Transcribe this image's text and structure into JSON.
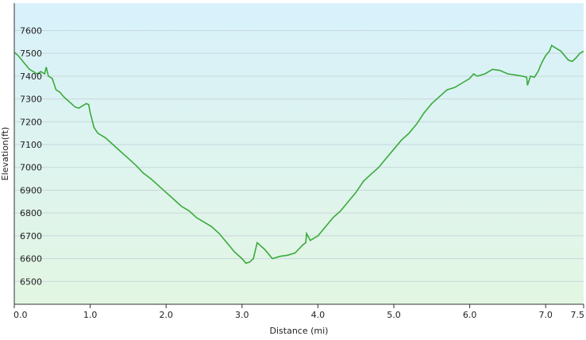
{
  "chart_data": {
    "type": "area",
    "xlabel": "Distance  (mi)",
    "ylabel": "Elevation(ft)",
    "xlim": [
      0,
      7.5
    ],
    "ylim": [
      6400,
      7720
    ],
    "x_ticks": [
      0,
      1,
      2,
      3,
      4,
      5,
      6,
      7,
      7.5
    ],
    "x_tick_labels": [
      "0.0",
      "1.0",
      "2.0",
      "3.0",
      "4.0",
      "5.0",
      "6.0",
      "7.0",
      "7.5"
    ],
    "y_ticks": [
      6500,
      6600,
      6700,
      6800,
      6900,
      7000,
      7100,
      7200,
      7300,
      7400,
      7500,
      7600
    ],
    "y_tick_labels": [
      "6500",
      "6600",
      "6700",
      "6800",
      "6900",
      "7000",
      "7100",
      "7200",
      "7300",
      "7400",
      "7500",
      "7600"
    ],
    "grid": true,
    "line_color": "#3aaa3a",
    "fill_top_color": "#d8f1fb",
    "fill_bottom_color": "#e3f6e3",
    "series": [
      {
        "x": [
          0.0,
          0.05,
          0.1,
          0.15,
          0.2,
          0.25,
          0.3,
          0.35,
          0.4,
          0.42,
          0.45,
          0.5,
          0.55,
          0.6,
          0.65,
          0.7,
          0.75,
          0.8,
          0.85,
          0.9,
          0.95,
          0.98,
          1.0,
          1.05,
          1.1,
          1.2,
          1.3,
          1.4,
          1.5,
          1.6,
          1.7,
          1.8,
          1.9,
          2.0,
          2.1,
          2.2,
          2.3,
          2.4,
          2.5,
          2.6,
          2.7,
          2.8,
          2.9,
          3.0,
          3.05,
          3.1,
          3.15,
          3.2,
          3.25,
          3.3,
          3.35,
          3.4,
          3.45,
          3.5,
          3.6,
          3.7,
          3.8,
          3.84,
          3.85,
          3.9,
          4.0,
          4.1,
          4.2,
          4.3,
          4.4,
          4.5,
          4.6,
          4.7,
          4.8,
          4.9,
          5.0,
          5.1,
          5.2,
          5.3,
          5.4,
          5.5,
          5.6,
          5.7,
          5.8,
          5.9,
          6.0,
          6.05,
          6.1,
          6.2,
          6.3,
          6.4,
          6.5,
          6.6,
          6.7,
          6.75,
          6.76,
          6.8,
          6.85,
          6.9,
          6.95,
          7.0,
          7.05,
          7.08,
          7.1,
          7.15,
          7.2,
          7.3,
          7.35,
          7.4,
          7.45,
          7.5
        ],
        "values": [
          7505,
          7490,
          7470,
          7450,
          7430,
          7420,
          7410,
          7420,
          7410,
          7440,
          7400,
          7390,
          7340,
          7330,
          7310,
          7295,
          7280,
          7265,
          7260,
          7270,
          7280,
          7275,
          7240,
          7175,
          7150,
          7130,
          7100,
          7070,
          7040,
          7010,
          6975,
          6950,
          6920,
          6890,
          6860,
          6830,
          6810,
          6780,
          6760,
          6740,
          6710,
          6670,
          6630,
          6600,
          6580,
          6585,
          6600,
          6670,
          6655,
          6640,
          6620,
          6600,
          6605,
          6610,
          6615,
          6625,
          6660,
          6670,
          6710,
          6680,
          6700,
          6740,
          6780,
          6810,
          6850,
          6890,
          6940,
          6970,
          7000,
          7040,
          7080,
          7120,
          7150,
          7190,
          7240,
          7280,
          7310,
          7340,
          7350,
          7370,
          7390,
          7410,
          7400,
          7410,
          7430,
          7425,
          7410,
          7405,
          7400,
          7395,
          7360,
          7400,
          7395,
          7420,
          7460,
          7490,
          7510,
          7535,
          7530,
          7520,
          7510,
          7470,
          7465,
          7480,
          7500,
          7510
        ]
      }
    ]
  }
}
